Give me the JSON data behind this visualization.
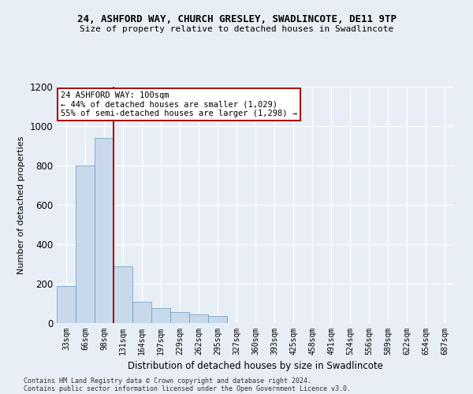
{
  "title_line1": "24, ASHFORD WAY, CHURCH GRESLEY, SWADLINCOTE, DE11 9TP",
  "title_line2": "Size of property relative to detached houses in Swadlincote",
  "xlabel": "Distribution of detached houses by size in Swadlincote",
  "ylabel": "Number of detached properties",
  "annotation_line1": "24 ASHFORD WAY: 100sqm",
  "annotation_line2": "← 44% of detached houses are smaller (1,029)",
  "annotation_line3": "55% of semi-detached houses are larger (1,298) →",
  "bar_color": "#c8d9ec",
  "bar_edge_color": "#6699bb",
  "vline_color": "#aa1111",
  "vline_x": 2.5,
  "categories": [
    "33sqm",
    "66sqm",
    "98sqm",
    "131sqm",
    "164sqm",
    "197sqm",
    "229sqm",
    "262sqm",
    "295sqm",
    "327sqm",
    "360sqm",
    "393sqm",
    "425sqm",
    "458sqm",
    "491sqm",
    "524sqm",
    "556sqm",
    "589sqm",
    "622sqm",
    "654sqm",
    "687sqm"
  ],
  "values": [
    190,
    800,
    940,
    290,
    110,
    75,
    55,
    45,
    35,
    0,
    0,
    0,
    0,
    0,
    0,
    0,
    0,
    0,
    0,
    0,
    0
  ],
  "ylim": [
    0,
    1200
  ],
  "yticks": [
    0,
    200,
    400,
    600,
    800,
    1000,
    1200
  ],
  "footnote1": "Contains HM Land Registry data © Crown copyright and database right 2024.",
  "footnote2": "Contains public sector information licensed under the Open Government Licence v3.0.",
  "background_color": "#e8eef5",
  "plot_bg_color": "#e8eef5",
  "grid_color": "#ffffff"
}
